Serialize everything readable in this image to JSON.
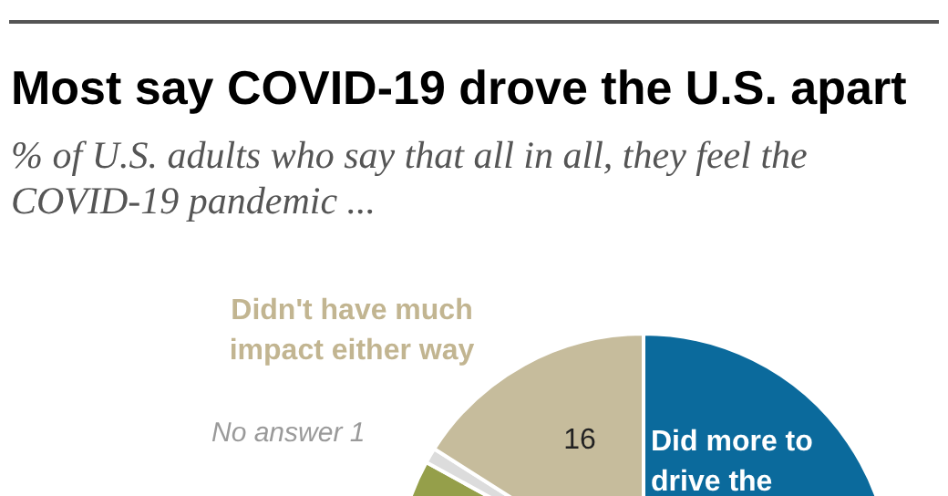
{
  "chart_data": {
    "type": "pie",
    "title": "Most say COVID-19 drove the U.S. apart",
    "subtitle": "% of U.S. adults who say that all in all, they feel the COVID-19 pandemic ...",
    "categories": [
      "Did more to drive the",
      null,
      "No answer",
      "Didn't have much impact either way"
    ],
    "values": [
      62,
      21,
      1,
      16
    ],
    "colors": [
      "#0b6a9c",
      "#959f4a",
      "#dcdcdc",
      "#c6bc9c"
    ],
    "value_labels": [
      null,
      null,
      "1",
      "16"
    ],
    "legend": false
  }
}
